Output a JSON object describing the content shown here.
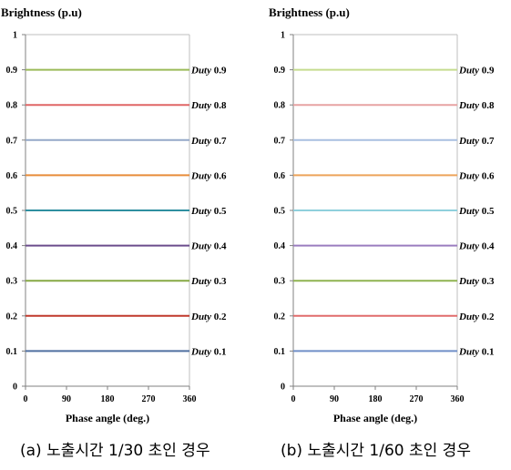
{
  "chart_data": [
    {
      "type": "line",
      "ylabel": "Brightness (p.u)",
      "xlabel": "Phase angle (deg.)",
      "xlim": [
        0,
        360
      ],
      "ylim": [
        0,
        1
      ],
      "xticks": [
        "0",
        "90",
        "180",
        "270",
        "360"
      ],
      "yticks": [
        "0",
        "0.1",
        "0.2",
        "0.3",
        "0.4",
        "0.5",
        "0.6",
        "0.7",
        "0.8",
        "0.9",
        "1"
      ],
      "grid": false,
      "legend": "right inline labels",
      "series": [
        {
          "name_prefix": "Duty",
          "name_value": "0.9",
          "color": "#9bbb59",
          "x": [
            0,
            360
          ],
          "y": [
            0.9,
            0.9
          ]
        },
        {
          "name_prefix": "Duty",
          "name_value": "0.8",
          "color": "#e06666",
          "x": [
            0,
            360
          ],
          "y": [
            0.8,
            0.8
          ]
        },
        {
          "name_prefix": "Duty",
          "name_value": "0.7",
          "color": "#95a9c8",
          "x": [
            0,
            360
          ],
          "y": [
            0.7,
            0.7
          ]
        },
        {
          "name_prefix": "Duty",
          "name_value": "0.6",
          "color": "#e88c3a",
          "x": [
            0,
            360
          ],
          "y": [
            0.6,
            0.6
          ]
        },
        {
          "name_prefix": "Duty",
          "name_value": "0.5",
          "color": "#2e8fa0",
          "x": [
            0,
            360
          ],
          "y": [
            0.5,
            0.5
          ]
        },
        {
          "name_prefix": "Duty",
          "name_value": "0.4",
          "color": "#6b4c8c",
          "x": [
            0,
            360
          ],
          "y": [
            0.4,
            0.4
          ]
        },
        {
          "name_prefix": "Duty",
          "name_value": "0.3",
          "color": "#86a844",
          "x": [
            0,
            360
          ],
          "y": [
            0.3,
            0.3
          ]
        },
        {
          "name_prefix": "Duty",
          "name_value": "0.2",
          "color": "#c0392b",
          "x": [
            0,
            360
          ],
          "y": [
            0.2,
            0.2
          ]
        },
        {
          "name_prefix": "Duty",
          "name_value": "0.1",
          "color": "#4f6fa0",
          "x": [
            0,
            360
          ],
          "y": [
            0.1,
            0.1
          ]
        }
      ]
    },
    {
      "type": "line",
      "ylabel": "Brightness (p.u)",
      "xlabel": "Phase angle (deg.)",
      "xlim": [
        0,
        360
      ],
      "ylim": [
        0,
        1
      ],
      "xticks": [
        "0",
        "90",
        "180",
        "270",
        "360"
      ],
      "yticks": [
        "0",
        "0.1",
        "0.2",
        "0.3",
        "0.4",
        "0.5",
        "0.6",
        "0.7",
        "0.8",
        "0.9",
        "1"
      ],
      "grid": false,
      "legend": "right inline labels",
      "series": [
        {
          "name_prefix": "Duty",
          "name_value": "0.9",
          "color": "#c5dc8f",
          "x": [
            0,
            360
          ],
          "y": [
            0.9,
            0.9
          ]
        },
        {
          "name_prefix": "Duty",
          "name_value": "0.8",
          "color": "#e7a3a3",
          "x": [
            0,
            360
          ],
          "y": [
            0.8,
            0.8
          ]
        },
        {
          "name_prefix": "Duty",
          "name_value": "0.7",
          "color": "#a9bfe0",
          "x": [
            0,
            360
          ],
          "y": [
            0.7,
            0.7
          ]
        },
        {
          "name_prefix": "Duty",
          "name_value": "0.6",
          "color": "#eda35a",
          "x": [
            0,
            360
          ],
          "y": [
            0.6,
            0.6
          ]
        },
        {
          "name_prefix": "Duty",
          "name_value": "0.5",
          "color": "#8fd0dc",
          "x": [
            0,
            360
          ],
          "y": [
            0.5,
            0.5
          ]
        },
        {
          "name_prefix": "Duty",
          "name_value": "0.4",
          "color": "#9a7dbf",
          "x": [
            0,
            360
          ],
          "y": [
            0.4,
            0.4
          ]
        },
        {
          "name_prefix": "Duty",
          "name_value": "0.3",
          "color": "#8fb350",
          "x": [
            0,
            360
          ],
          "y": [
            0.3,
            0.3
          ]
        },
        {
          "name_prefix": "Duty",
          "name_value": "0.2",
          "color": "#e06c6c",
          "x": [
            0,
            360
          ],
          "y": [
            0.2,
            0.2
          ]
        },
        {
          "name_prefix": "Duty",
          "name_value": "0.1",
          "color": "#6f8fc8",
          "x": [
            0,
            360
          ],
          "y": [
            0.1,
            0.1
          ]
        }
      ]
    }
  ],
  "captions": {
    "a": "(a) 노출시간 1/30 초인 경우",
    "b": "(b) 노출시간 1/60 초인 경우"
  }
}
